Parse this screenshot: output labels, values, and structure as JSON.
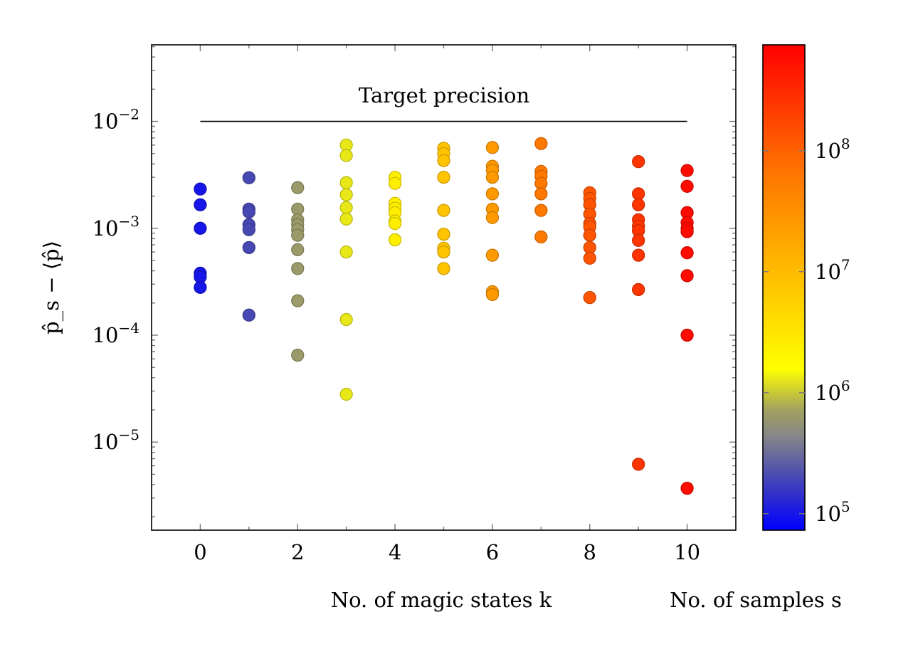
{
  "chart_data": {
    "type": "scatter",
    "title": "",
    "xlabel": "No. of magic states k",
    "ylabel": "p̂_s − ⟨p̂⟩",
    "colorbar_label": "No. of samples s",
    "x_range": [
      -1,
      11
    ],
    "y_range": [
      1.5e-06,
      0.052
    ],
    "y_scale": "log",
    "x_ticks": [
      "0",
      "2",
      "4",
      "6",
      "8",
      "10"
    ],
    "y_ticks": [
      {
        "value": 0.01,
        "base": "10",
        "exp": "−2"
      },
      {
        "value": 0.001,
        "base": "10",
        "exp": "−3"
      },
      {
        "value": 0.0001,
        "base": "10",
        "exp": "−4"
      },
      {
        "value": 1e-05,
        "base": "10",
        "exp": "−5"
      }
    ],
    "colorbar": {
      "scale": "log",
      "range": [
        73000,
        750000000
      ],
      "ticks": [
        {
          "value": 100000,
          "base": "10",
          "exp": "5"
        },
        {
          "value": 1000000,
          "base": "10",
          "exp": "6"
        },
        {
          "value": 10000000,
          "base": "10",
          "exp": "7"
        },
        {
          "value": 100000000,
          "base": "10",
          "exp": "8"
        }
      ],
      "colormap": [
        {
          "log_value": 4.865,
          "color": "#0000ff"
        },
        {
          "log_value": 5.3,
          "color": "#4848b4"
        },
        {
          "log_value": 5.65,
          "color": "#888888"
        },
        {
          "log_value": 5.85,
          "color": "#a0a060"
        },
        {
          "log_value": 6.2,
          "color": "#ffff00"
        },
        {
          "log_value": 7.0,
          "color": "#ffbb00"
        },
        {
          "log_value": 7.8,
          "color": "#ff7700"
        },
        {
          "log_value": 8.876,
          "color": "#ff0000"
        }
      ]
    },
    "reference_line": {
      "label": "Target precision",
      "value": 0.01,
      "x_from": 0,
      "x_to": 10
    },
    "grid": false,
    "series": [
      {
        "k": 0,
        "samples": 100000,
        "values": [
          0.00233,
          0.00166,
          0.001,
          0.00038,
          0.00035,
          0.00028
        ]
      },
      {
        "k": 1,
        "samples": 200000,
        "values": [
          0.00297,
          0.00151,
          0.00142,
          0.00108,
          0.00097,
          0.00066,
          0.000154
        ]
      },
      {
        "k": 2,
        "samples": 630000,
        "values": [
          0.0024,
          0.00151,
          0.0012,
          0.00108,
          0.00097,
          0.00086,
          0.00063,
          0.00042,
          0.00021,
          6.5e-05
        ]
      },
      {
        "k": 3,
        "samples": 1300000,
        "values": [
          0.006,
          0.0048,
          0.00267,
          0.00206,
          0.00156,
          0.00122,
          0.0006,
          0.00014,
          2.8e-05
        ]
      },
      {
        "k": 4,
        "samples": 2500000,
        "values": [
          0.003,
          0.00263,
          0.00171,
          0.00154,
          0.0014,
          0.00117,
          0.00111,
          0.00078
        ]
      },
      {
        "k": 5,
        "samples": 8000000,
        "values": [
          0.0056,
          0.005,
          0.0043,
          0.003,
          0.00147,
          0.00088,
          0.00065,
          0.0006,
          0.00042
        ]
      },
      {
        "k": 6,
        "samples": 25000000,
        "values": [
          0.0057,
          0.0038,
          0.0035,
          0.003,
          0.0021,
          0.00151,
          0.00126,
          0.00056,
          0.000255,
          0.00024
        ]
      },
      {
        "k": 7,
        "samples": 60000000,
        "values": [
          0.0062,
          0.0034,
          0.00307,
          0.00263,
          0.0021,
          0.00147,
          0.00083
        ]
      },
      {
        "k": 8,
        "samples": 130000000,
        "values": [
          0.00215,
          0.0019,
          0.00166,
          0.00136,
          0.00111,
          0.00103,
          0.00086,
          0.00066,
          0.000525,
          0.000225
        ]
      },
      {
        "k": 9,
        "samples": 250000000,
        "values": [
          0.0042,
          0.0021,
          0.00166,
          0.0012,
          0.00105,
          0.00095,
          0.00077,
          0.00056,
          0.000267,
          6.2e-06
        ]
      },
      {
        "k": 10,
        "samples": 600000000,
        "values": [
          0.00347,
          0.00247,
          0.0014,
          0.00113,
          0.001,
          0.00093,
          0.00059,
          0.00036,
          0.0001,
          3.7e-06
        ]
      }
    ]
  }
}
